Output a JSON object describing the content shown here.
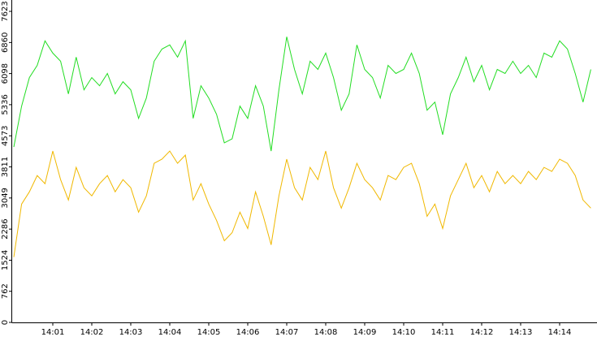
{
  "chart_data": {
    "type": "line",
    "x": [
      840.0,
      840.2,
      840.4,
      840.6,
      840.8,
      841.0,
      841.2,
      841.4,
      841.6,
      841.8,
      842.0,
      842.2,
      842.4,
      842.6,
      842.8,
      843.0,
      843.2,
      843.4,
      843.6,
      843.8,
      844.0,
      844.2,
      844.4,
      844.6,
      844.8,
      845.0,
      845.2,
      845.4,
      845.6,
      845.8,
      846.0,
      846.2,
      846.4,
      846.6,
      846.8,
      847.0,
      847.2,
      847.4,
      847.6,
      847.8,
      848.0,
      848.2,
      848.4,
      848.6,
      848.8,
      849.0,
      849.2,
      849.4,
      849.6,
      849.8,
      850.0,
      850.2,
      850.4,
      850.6,
      850.8,
      851.0,
      851.2,
      851.4,
      851.6,
      851.8,
      852.0,
      852.2,
      852.4,
      852.6,
      852.8,
      853.0,
      853.2,
      853.4,
      853.6,
      853.8,
      854.0,
      854.2,
      854.4,
      854.6,
      854.8
    ],
    "series": [
      {
        "color": "#22dd22",
        "values": [
          4300,
          5300,
          6000,
          6300,
          6900,
          6600,
          6400,
          5600,
          6500,
          5700,
          6000,
          5800,
          6100,
          5600,
          5900,
          5700,
          5000,
          5500,
          6400,
          6700,
          6800,
          6500,
          6900,
          5000,
          5800,
          5500,
          5100,
          4400,
          4500,
          5300,
          5000,
          5800,
          5300,
          4200,
          5700,
          7000,
          6200,
          5600,
          6400,
          6200,
          6600,
          6000,
          5200,
          5600,
          6800,
          6200,
          6000,
          5500,
          6300,
          6100,
          6200,
          6600,
          6100,
          5200,
          5400,
          4600,
          5600,
          6000,
          6500,
          5900,
          6300,
          5700,
          6200,
          6100,
          6400,
          6100,
          6300,
          6000,
          6600,
          6500,
          6900,
          6700,
          6100,
          5400,
          6200
        ]
      },
      {
        "color": "#f0b800",
        "values": [
          1600,
          2900,
          3200,
          3600,
          3400,
          4200,
          3500,
          3000,
          3800,
          3300,
          3100,
          3400,
          3600,
          3200,
          3500,
          3300,
          2700,
          3100,
          3900,
          4000,
          4200,
          3900,
          4100,
          3000,
          3400,
          2900,
          2500,
          2000,
          2200,
          2700,
          2300,
          3200,
          2600,
          1900,
          3100,
          4000,
          3300,
          3000,
          3800,
          3500,
          4200,
          3300,
          2800,
          3300,
          3900,
          3500,
          3300,
          3000,
          3600,
          3500,
          3800,
          3900,
          3400,
          2600,
          2900,
          2300,
          3100,
          3500,
          3900,
          3300,
          3600,
          3200,
          3700,
          3400,
          3600,
          3400,
          3700,
          3500,
          3800,
          3700,
          4000,
          3900,
          3600,
          3000,
          2800
        ]
      }
    ],
    "xlim": [
      840,
      855
    ],
    "xticks": [
      {
        "value": 841,
        "label": "14:01"
      },
      {
        "value": 842,
        "label": "14:02"
      },
      {
        "value": 843,
        "label": "14:03"
      },
      {
        "value": 844,
        "label": "14:04"
      },
      {
        "value": 845,
        "label": "14:05"
      },
      {
        "value": 846,
        "label": "14:06"
      },
      {
        "value": 847,
        "label": "14:07"
      },
      {
        "value": 848,
        "label": "14:08"
      },
      {
        "value": 849,
        "label": "14:09"
      },
      {
        "value": 850,
        "label": "14:10"
      },
      {
        "value": 851,
        "label": "14:11"
      },
      {
        "value": 852,
        "label": "14:12"
      },
      {
        "value": 853,
        "label": "14:13"
      },
      {
        "value": 854,
        "label": "14:14"
      }
    ],
    "ylim": [
      0,
      7623
    ],
    "yticks": [
      0,
      762,
      1524,
      2286,
      3049,
      3811,
      4573,
      5336,
      6098,
      6860,
      7623
    ]
  }
}
